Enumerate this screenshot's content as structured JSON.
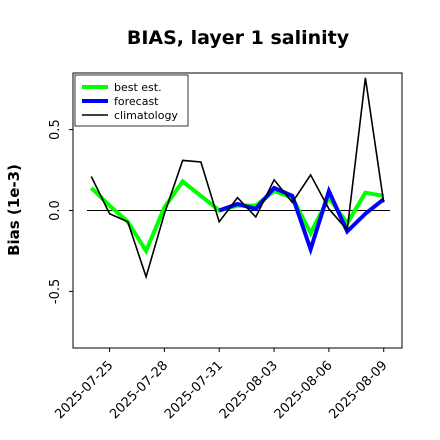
{
  "chart_data": {
    "type": "line",
    "title": "BIAS, layer 1 salinity",
    "ylabel": "Bias (1e-3)",
    "xlabel": "",
    "ylim": [
      -0.85,
      0.85
    ],
    "xlim": [
      "2025-07-23",
      "2025-08-10"
    ],
    "yticks": [
      -0.5,
      0.0,
      0.5
    ],
    "ytick_labels": [
      "-0.5",
      "0.0",
      "0.5"
    ],
    "xticks": [
      "2025-07-25",
      "2025-07-28",
      "2025-07-31",
      "2025-08-03",
      "2025-08-06",
      "2025-08-09"
    ],
    "xtick_labels": [
      "2025-07-25",
      "2025-07-28",
      "2025-07-31",
      "2025-08-03",
      "2025-08-06",
      "2025-08-09"
    ],
    "highlighted_tick": "2025-07-31",
    "highlight_color": "#228B22",
    "zero_line": true,
    "grid": false,
    "legend_position": "top-left",
    "series": [
      {
        "name": "best est.",
        "color": "#00ff00",
        "x": [
          "2025-07-24",
          "2025-07-25",
          "2025-07-26",
          "2025-07-27",
          "2025-07-28",
          "2025-07-29",
          "2025-07-30",
          "2025-07-31",
          "2025-08-01",
          "2025-08-02",
          "2025-08-03",
          "2025-08-04",
          "2025-08-05",
          "2025-08-06",
          "2025-08-07",
          "2025-08-08",
          "2025-08-09"
        ],
        "values": [
          0.14,
          0.03,
          -0.07,
          -0.25,
          0.02,
          0.18,
          0.09,
          0.0,
          0.03,
          0.03,
          0.12,
          0.08,
          -0.14,
          0.08,
          -0.08,
          0.11,
          0.09
        ]
      },
      {
        "name": "forecast",
        "color": "#0000ff",
        "x": [
          "2025-07-31",
          "2025-08-01",
          "2025-08-02",
          "2025-08-03",
          "2025-08-04",
          "2025-08-05",
          "2025-08-06",
          "2025-08-07",
          "2025-08-08",
          "2025-08-09"
        ],
        "values": [
          0.0,
          0.04,
          0.01,
          0.14,
          0.09,
          -0.24,
          0.12,
          -0.13,
          -0.02,
          0.07
        ]
      },
      {
        "name": "climatology",
        "color": "#000000",
        "x": [
          "2025-07-24",
          "2025-07-25",
          "2025-07-26",
          "2025-07-27",
          "2025-07-28",
          "2025-07-29",
          "2025-07-30",
          "2025-07-31",
          "2025-08-01",
          "2025-08-02",
          "2025-08-03",
          "2025-08-04",
          "2025-08-05",
          "2025-08-06",
          "2025-08-07",
          "2025-08-08",
          "2025-08-09"
        ],
        "values": [
          0.21,
          -0.02,
          -0.07,
          -0.41,
          -0.02,
          0.31,
          0.3,
          -0.07,
          0.08,
          -0.04,
          0.19,
          0.05,
          0.22,
          0.01,
          -0.12,
          0.82,
          0.05
        ]
      }
    ]
  }
}
